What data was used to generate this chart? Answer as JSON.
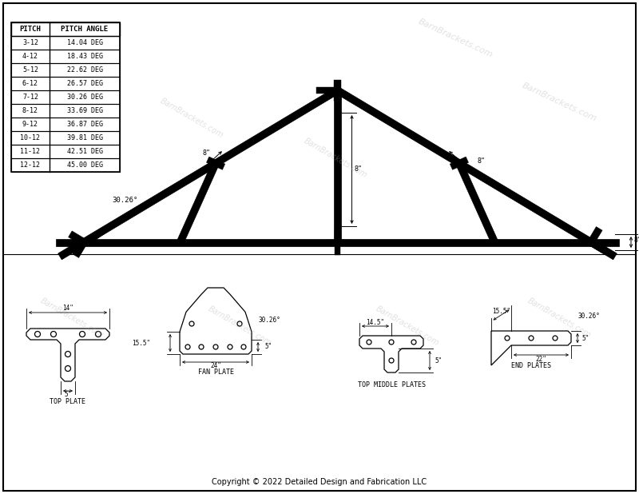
{
  "bg_color": "#ffffff",
  "border_color": "#000000",
  "line_color": "#000000",
  "watermark_text": "BarnBrackets.com",
  "copyright_text": "Copyright © 2022 Detailed Design and Fabrication LLC",
  "table_title_row": [
    "PITCH",
    "PITCH ANGLE"
  ],
  "table_data": [
    [
      "3-12",
      "14.04 DEG"
    ],
    [
      "4-12",
      "18.43 DEG"
    ],
    [
      "5-12",
      "22.62 DEG"
    ],
    [
      "6-12",
      "26.57 DEG"
    ],
    [
      "7-12",
      "30.26 DEG"
    ],
    [
      "8-12",
      "33.69 DEG"
    ],
    [
      "9-12",
      "36.87 DEG"
    ],
    [
      "10-12",
      "39.81 DEG"
    ],
    [
      "11-12",
      "42.51 DEG"
    ],
    [
      "12-12",
      "45.00 DEG"
    ]
  ],
  "plate_labels": [
    "TOP PLATE",
    "FAN PLATE",
    "TOP MIDDLE PLATES",
    "END PLATES"
  ]
}
